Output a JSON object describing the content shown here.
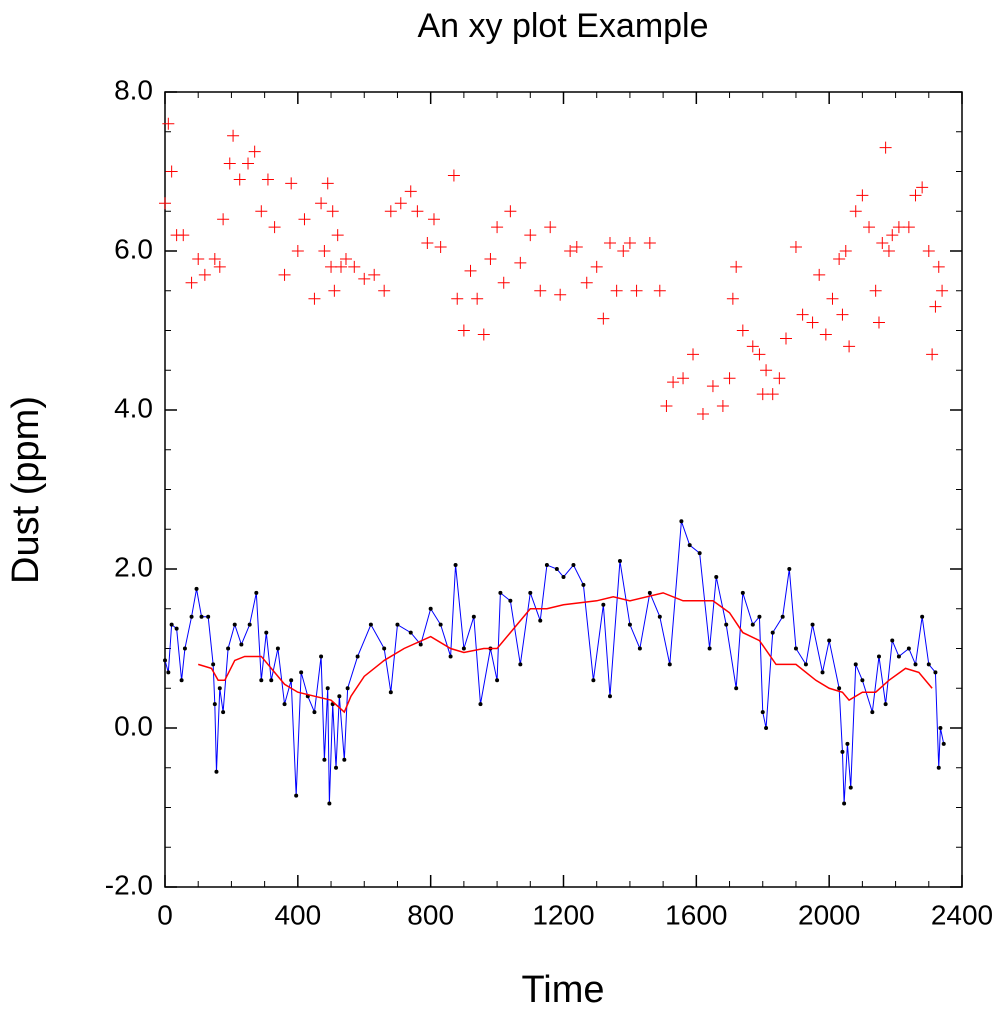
{
  "chart_data": {
    "type": "xy",
    "title": "An xy plot Example",
    "xlabel": "Time",
    "ylabel": "Dust (ppm)",
    "xlim": [
      0,
      2400
    ],
    "ylim": [
      -2,
      8
    ],
    "xticks": [
      0,
      400,
      800,
      1200,
      1600,
      2000,
      2400
    ],
    "yticks": [
      {
        "value": -2,
        "label": "-2.0"
      },
      {
        "value": 0,
        "label": "0.0"
      },
      {
        "value": 2,
        "label": "2.0"
      },
      {
        "value": 4,
        "label": "4.0"
      },
      {
        "value": 6,
        "label": "6.0"
      },
      {
        "value": 8,
        "label": "8.0"
      }
    ],
    "xminorticks": [
      100,
      200,
      300,
      500,
      600,
      700,
      900,
      1000,
      1100,
      1300,
      1400,
      1500,
      1700,
      1800,
      1900,
      2100,
      2200,
      2300
    ],
    "yminorticks": [
      -1.5,
      -1,
      -0.5,
      0.5,
      1,
      1.5,
      2.5,
      3,
      3.5,
      4.5,
      5,
      5.5,
      6.5,
      7,
      7.5
    ],
    "series": [
      {
        "style": "markers",
        "color": "#ff0000",
        "x": [
          0,
          10,
          20,
          35,
          55,
          80,
          100,
          120,
          150,
          165,
          175,
          195,
          205,
          225,
          250,
          270,
          290,
          310,
          330,
          360,
          380,
          400,
          420,
          450,
          470,
          480,
          490,
          500,
          505,
          510,
          520,
          530,
          545,
          570,
          600,
          630,
          660,
          680,
          710,
          740,
          760,
          790,
          810,
          830,
          870,
          880,
          900,
          920,
          940,
          960,
          980,
          1000,
          1020,
          1040,
          1070,
          1100,
          1130,
          1160,
          1190,
          1220,
          1240,
          1270,
          1300,
          1320,
          1340,
          1360,
          1380,
          1400,
          1420,
          1460,
          1490,
          1510,
          1530,
          1560,
          1590,
          1620,
          1650,
          1680,
          1700,
          1710,
          1720,
          1740,
          1770,
          1790,
          1800,
          1810,
          1830,
          1850,
          1870,
          1900,
          1920,
          1950,
          1970,
          1990,
          2010,
          2030,
          2040,
          2050,
          2060,
          2080,
          2100,
          2120,
          2140,
          2150,
          2160,
          2170,
          2180,
          2190,
          2210,
          2240,
          2260,
          2280,
          2300,
          2310,
          2320,
          2330,
          2340
        ],
        "values": [
          6.6,
          7.6,
          7.0,
          6.2,
          6.2,
          5.6,
          5.9,
          5.7,
          5.9,
          5.8,
          6.4,
          7.1,
          7.45,
          6.9,
          7.1,
          7.25,
          6.5,
          6.9,
          6.3,
          5.7,
          6.85,
          6.0,
          6.4,
          5.4,
          6.6,
          6.0,
          6.85,
          5.8,
          6.5,
          5.5,
          6.2,
          5.8,
          5.9,
          5.8,
          5.65,
          5.7,
          5.5,
          6.5,
          6.6,
          6.75,
          6.5,
          6.1,
          6.4,
          6.05,
          6.95,
          5.4,
          5.0,
          5.75,
          5.4,
          4.95,
          5.9,
          6.3,
          5.6,
          6.5,
          5.85,
          6.2,
          5.5,
          6.3,
          5.45,
          6.0,
          6.05,
          5.6,
          5.8,
          5.15,
          6.1,
          5.5,
          6.0,
          6.1,
          5.5,
          6.1,
          5.5,
          4.05,
          4.35,
          4.4,
          4.7,
          3.95,
          4.3,
          4.05,
          4.4,
          5.4,
          5.8,
          5.0,
          4.8,
          4.7,
          4.2,
          4.5,
          4.2,
          4.4,
          4.9,
          6.05,
          5.2,
          5.1,
          5.7,
          4.95,
          5.4,
          5.9,
          5.2,
          6.0,
          4.8,
          6.5,
          6.7,
          6.3,
          5.5,
          5.1,
          6.1,
          7.3,
          6.0,
          6.2,
          6.3,
          6.3,
          6.7,
          6.8,
          6.0,
          4.7,
          5.3,
          5.8,
          5.5
        ]
      },
      {
        "style": "line-markers",
        "color": "#0000ff",
        "marker_color": "#000000",
        "x": [
          0,
          10,
          20,
          35,
          50,
          60,
          80,
          95,
          110,
          130,
          145,
          150,
          155,
          165,
          175,
          190,
          210,
          230,
          255,
          275,
          290,
          305,
          320,
          340,
          360,
          380,
          395,
          410,
          430,
          450,
          470,
          480,
          490,
          495,
          505,
          515,
          525,
          540,
          550,
          580,
          620,
          660,
          680,
          700,
          740,
          770,
          800,
          830,
          860,
          875,
          900,
          930,
          950,
          980,
          1000,
          1010,
          1040,
          1070,
          1100,
          1130,
          1150,
          1180,
          1200,
          1230,
          1260,
          1290,
          1320,
          1340,
          1370,
          1400,
          1430,
          1460,
          1490,
          1520,
          1555,
          1580,
          1610,
          1640,
          1660,
          1690,
          1720,
          1740,
          1770,
          1790,
          1800,
          1810,
          1830,
          1860,
          1880,
          1900,
          1930,
          1950,
          1980,
          2000,
          2030,
          2040,
          2045,
          2055,
          2065,
          2080,
          2100,
          2130,
          2150,
          2170,
          2190,
          2210,
          2240,
          2260,
          2280,
          2300,
          2320,
          2330,
          2335,
          2345
        ],
        "values": [
          0.85,
          0.7,
          1.3,
          1.25,
          0.6,
          1.0,
          1.4,
          1.75,
          1.4,
          1.4,
          0.8,
          0.3,
          -0.55,
          0.5,
          0.2,
          1.0,
          1.3,
          1.05,
          1.3,
          1.7,
          0.6,
          1.2,
          0.6,
          1.0,
          0.3,
          0.6,
          -0.85,
          0.7,
          0.4,
          0.2,
          0.9,
          -0.4,
          0.5,
          -0.95,
          0.3,
          -0.5,
          0.4,
          -0.4,
          0.5,
          0.9,
          1.3,
          1.0,
          0.45,
          1.3,
          1.2,
          1.05,
          1.5,
          1.3,
          0.9,
          2.05,
          1.0,
          1.4,
          0.3,
          1.0,
          0.6,
          1.7,
          1.6,
          0.8,
          1.7,
          1.35,
          2.05,
          2.0,
          1.9,
          2.05,
          1.8,
          0.6,
          1.55,
          0.4,
          2.1,
          1.3,
          1.0,
          1.7,
          1.4,
          0.8,
          2.6,
          2.3,
          2.2,
          1.0,
          1.9,
          1.3,
          0.5,
          1.7,
          1.3,
          1.4,
          0.2,
          0.0,
          1.2,
          1.4,
          2.0,
          1.0,
          0.8,
          1.3,
          0.7,
          1.1,
          0.5,
          -0.3,
          -0.95,
          -0.2,
          -0.75,
          0.8,
          0.6,
          0.2,
          0.9,
          0.3,
          1.1,
          0.9,
          1.0,
          0.8,
          1.4,
          0.8,
          0.7,
          -0.5,
          0.0,
          -0.2
        ]
      },
      {
        "style": "line",
        "color": "#ff0000",
        "x": [
          100,
          140,
          160,
          180,
          210,
          240,
          290,
          320,
          360,
          400,
          450,
          500,
          540,
          560,
          600,
          660,
          720,
          800,
          860,
          900,
          960,
          1000,
          1040,
          1100,
          1150,
          1200,
          1300,
          1350,
          1400,
          1500,
          1560,
          1650,
          1700,
          1740,
          1790,
          1840,
          1900,
          1960,
          2000,
          2040,
          2060,
          2100,
          2140,
          2180,
          2230,
          2270,
          2310
        ],
        "values": [
          0.8,
          0.75,
          0.6,
          0.6,
          0.85,
          0.9,
          0.9,
          0.75,
          0.55,
          0.45,
          0.4,
          0.35,
          0.2,
          0.4,
          0.65,
          0.85,
          1.0,
          1.15,
          1.0,
          0.95,
          1.0,
          1.0,
          1.2,
          1.5,
          1.5,
          1.55,
          1.6,
          1.65,
          1.6,
          1.7,
          1.6,
          1.6,
          1.45,
          1.2,
          1.1,
          0.8,
          0.8,
          0.6,
          0.5,
          0.45,
          0.35,
          0.45,
          0.45,
          0.6,
          0.75,
          0.7,
          0.5
        ]
      }
    ]
  }
}
